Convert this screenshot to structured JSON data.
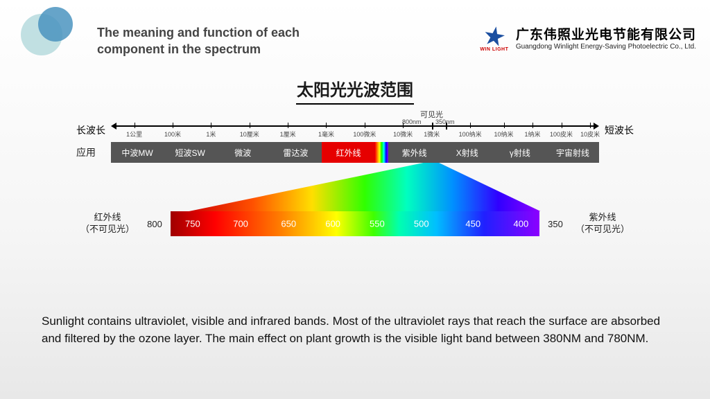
{
  "header": {
    "title_line1": "The meaning and function of each",
    "title_line2": "component in the spectrum",
    "company_cn": "广东伟照业光电节能有限公司",
    "company_en": "Guangdong Winlight Energy-Saving Photoelectric Co., Ltd.",
    "logo_text": "WIN LIGHT"
  },
  "figure": {
    "title": "太阳光光波范围",
    "visible_label": "可见光",
    "visible_left_nm": "800nm",
    "visible_right_nm": "350nm",
    "axis": {
      "left_label": "长波长",
      "right_label": "短波长",
      "ticks": [
        {
          "pos": 4,
          "label": "1公里"
        },
        {
          "pos": 12,
          "label": "100米"
        },
        {
          "pos": 20,
          "label": "1米"
        },
        {
          "pos": 28,
          "label": "10厘米"
        },
        {
          "pos": 36,
          "label": "1厘米"
        },
        {
          "pos": 44,
          "label": "1毫米"
        },
        {
          "pos": 52,
          "label": "100微米"
        },
        {
          "pos": 60,
          "label": "10微米"
        },
        {
          "pos": 66,
          "label": "1微米",
          "major": true
        },
        {
          "pos": 69,
          "label": "",
          "major": true
        },
        {
          "pos": 74,
          "label": "100纳米"
        },
        {
          "pos": 81,
          "label": "10纳米"
        },
        {
          "pos": 87,
          "label": "1纳米"
        },
        {
          "pos": 93,
          "label": "100皮米"
        },
        {
          "pos": 99,
          "label": "10皮米"
        }
      ]
    },
    "bands": {
      "row_label": "应用",
      "items": [
        {
          "label": "中波MW",
          "color": "#555555"
        },
        {
          "label": "短波SW",
          "color": "#555555"
        },
        {
          "label": "微波",
          "color": "#555555"
        },
        {
          "label": "雷达波",
          "color": "#555555"
        },
        {
          "label": "红外线",
          "color": "#e60000"
        },
        {
          "label": "",
          "visible": true
        },
        {
          "label": "紫外线",
          "color": "#555555"
        },
        {
          "label": "X射线",
          "color": "#555555"
        },
        {
          "label": "γ射线",
          "color": "#555555"
        },
        {
          "label": "宇宙射线",
          "color": "#555555"
        }
      ]
    },
    "triangle": {
      "top_left_pct": 64.0,
      "top_right_pct": 67.2,
      "bottom_left_pct": 16,
      "bottom_right_pct": 88
    },
    "spectrum": {
      "left_side_line1": "红外线",
      "left_side_line2": "（不可见光）",
      "right_side_line1": "紫外线",
      "right_side_line2": "（不可见光）",
      "left_num": "800",
      "right_num": "350",
      "ticks": [
        {
          "nm": 750,
          "pos": 6
        },
        {
          "nm": 700,
          "pos": 19
        },
        {
          "nm": 650,
          "pos": 32
        },
        {
          "nm": 600,
          "pos": 44
        },
        {
          "nm": 550,
          "pos": 56
        },
        {
          "nm": 500,
          "pos": 68
        },
        {
          "nm": 450,
          "pos": 82
        },
        {
          "nm": 400,
          "pos": 95
        }
      ]
    }
  },
  "body_text": "Sunlight contains ultraviolet, visible and infrared bands. Most of the ultraviolet rays that reach the surface are absorbed and filtered by the ozone layer. The main effect on plant growth is the visible light band between 380NM and 780NM.",
  "colors": {
    "corner1": "#a8d4d8",
    "corner2": "#0067a6",
    "band_gray": "#555555",
    "band_ir": "#e60000"
  }
}
